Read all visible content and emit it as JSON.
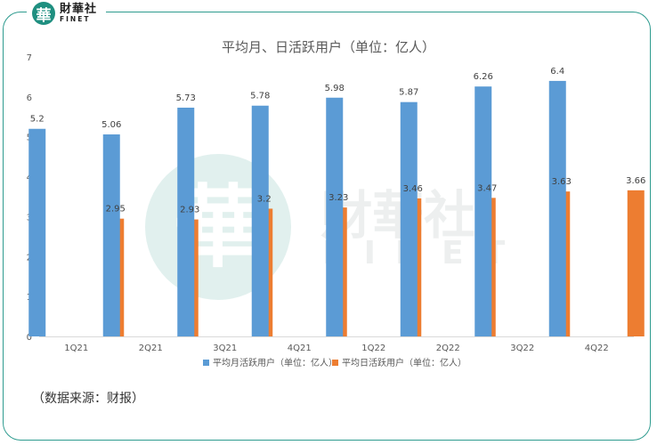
{
  "brand": {
    "logo_glyph": "華",
    "name_cn": "財華社",
    "name_en": "FINET",
    "color": "#1f8f80"
  },
  "watermark": {
    "glyph": "華",
    "name_cn": "財華社",
    "name_en": "FINET"
  },
  "source_note": "（数据来源：财报）",
  "chart_data": {
    "type": "bar",
    "title": "平均月、日活跃用户（单位：亿人）",
    "categories": [
      "1Q21",
      "2Q21",
      "3Q21",
      "4Q21",
      "1Q22",
      "2Q22",
      "3Q22",
      "4Q22"
    ],
    "ylim": [
      0,
      7
    ],
    "yticks": [
      0,
      1,
      2,
      3,
      4,
      5,
      6,
      7
    ],
    "grid": false,
    "legend_position": "bottom",
    "data_labels": true,
    "series": [
      {
        "name": "平均月活跃用户（单位：亿人）",
        "color": "#5b9bd5",
        "values": [
          5.2,
          5.06,
          5.73,
          5.78,
          5.98,
          5.87,
          6.26,
          6.4
        ],
        "labels": [
          "5.2",
          "5.06",
          "5.73",
          "5.78",
          "5.98",
          "5.87",
          "6.26",
          "6.4"
        ]
      },
      {
        "name": "平均日活跃用户（单位：亿人）",
        "color": "#ed7d31",
        "values": [
          2.95,
          2.93,
          3.2,
          3.23,
          3.46,
          3.47,
          3.63,
          3.66
        ],
        "labels": [
          "2.95",
          "2.93",
          "3.2",
          "3.23",
          "3.46",
          "3.47",
          "3.63",
          "3.66"
        ]
      }
    ]
  }
}
